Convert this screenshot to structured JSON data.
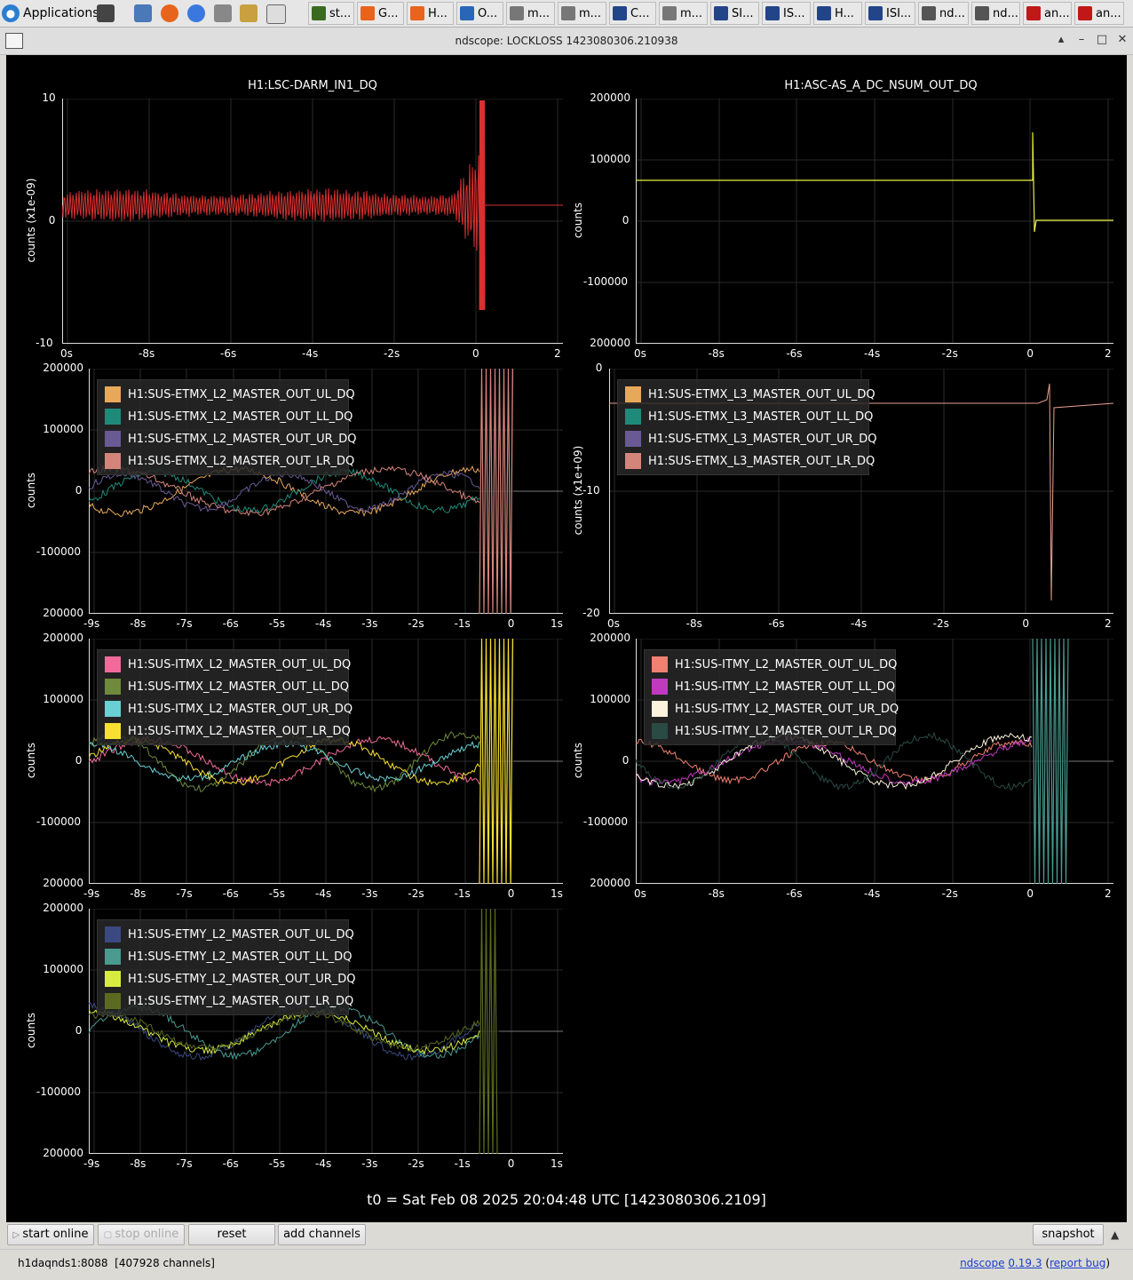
{
  "taskbar": {
    "apps_label": "Applications",
    "buttons": [
      {
        "label": "st...",
        "icon_color": "#3a6a20"
      },
      {
        "label": "G...",
        "icon_color": "#e8631c"
      },
      {
        "label": "H...",
        "icon_color": "#e8631c"
      },
      {
        "label": "O...",
        "icon_color": "#2a66b8"
      },
      {
        "label": "m...",
        "icon_color": "#777777"
      },
      {
        "label": "m...",
        "icon_color": "#777777"
      },
      {
        "label": "C...",
        "icon_color": "#224488"
      },
      {
        "label": "m...",
        "icon_color": "#777777"
      },
      {
        "label": "SI...",
        "icon_color": "#224488"
      },
      {
        "label": "IS...",
        "icon_color": "#224488"
      },
      {
        "label": "H...",
        "icon_color": "#224488"
      },
      {
        "label": "ISI...",
        "icon_color": "#224488"
      },
      {
        "label": "nd...",
        "icon_color": "#555555"
      },
      {
        "label": "nd...",
        "icon_color": "#555555"
      },
      {
        "label": "an...",
        "icon_color": "#c01818"
      },
      {
        "label": "an...",
        "icon_color": "#c01818"
      }
    ]
  },
  "window": {
    "title": "ndscope: LOCKLOSS 1423080306.210938"
  },
  "plots": {
    "darm": {
      "title": "H1:LSC-DARM_IN1_DQ",
      "ylabel": "counts (x1e-09)",
      "yticks": [
        "10",
        "0",
        "-10"
      ],
      "xticks": [
        "0s",
        "-8s",
        "-6s",
        "-4s",
        "-2s",
        "0",
        "2"
      ]
    },
    "asc": {
      "title": "H1:ASC-AS_A_DC_NSUM_OUT_DQ",
      "ylabel": "counts",
      "yticks": [
        "200000",
        "100000",
        "0",
        "-100000",
        "200000"
      ],
      "xticks": [
        "0s",
        "-8s",
        "-6s",
        "-4s",
        "-2s",
        "0",
        "2"
      ]
    },
    "etmx_l2": {
      "ylabel": "counts",
      "yticks": [
        "200000",
        "100000",
        "0",
        "-100000",
        "200000"
      ],
      "xticks": [
        "-9s",
        "-8s",
        "-7s",
        "-6s",
        "-5s",
        "-4s",
        "-3s",
        "-2s",
        "-1s",
        "0",
        "1s"
      ],
      "legend": [
        {
          "name": "H1:SUS-ETMX_L2_MASTER_OUT_UL_DQ",
          "color": "#e8a85a"
        },
        {
          "name": "H1:SUS-ETMX_L2_MASTER_OUT_LL_DQ",
          "color": "#1f8a7a"
        },
        {
          "name": "H1:SUS-ETMX_L2_MASTER_OUT_UR_DQ",
          "color": "#6a5a94"
        },
        {
          "name": "H1:SUS-ETMX_L2_MASTER_OUT_LR_DQ",
          "color": "#d4857a"
        }
      ]
    },
    "etmx_l3": {
      "ylabel": "counts (x1e+09)",
      "yticks": [
        "0",
        "-10",
        "-20"
      ],
      "xticks": [
        "0s",
        "-8s",
        "-6s",
        "-4s",
        "-2s",
        "0",
        "2"
      ],
      "legend": [
        {
          "name": "H1:SUS-ETMX_L3_MASTER_OUT_UL_DQ",
          "color": "#e8a85a"
        },
        {
          "name": "H1:SUS-ETMX_L3_MASTER_OUT_LL_DQ",
          "color": "#1f8a7a"
        },
        {
          "name": "H1:SUS-ETMX_L3_MASTER_OUT_UR_DQ",
          "color": "#6a5a94"
        },
        {
          "name": "H1:SUS-ETMX_L3_MASTER_OUT_LR_DQ",
          "color": "#d4857a"
        }
      ]
    },
    "itmx_l2": {
      "ylabel": "counts",
      "yticks": [
        "200000",
        "100000",
        "0",
        "-100000",
        "200000"
      ],
      "xticks": [
        "-9s",
        "-8s",
        "-7s",
        "-6s",
        "-5s",
        "-4s",
        "-3s",
        "-2s",
        "-1s",
        "0",
        "1s"
      ],
      "legend": [
        {
          "name": "H1:SUS-ITMX_L2_MASTER_OUT_UL_DQ",
          "color": "#f06a9a"
        },
        {
          "name": "H1:SUS-ITMX_L2_MASTER_OUT_LL_DQ",
          "color": "#6e8a3a"
        },
        {
          "name": "H1:SUS-ITMX_L2_MASTER_OUT_UR_DQ",
          "color": "#6ad0d4"
        },
        {
          "name": "H1:SUS-ITMX_L2_MASTER_OUT_LR_DQ",
          "color": "#f8e030"
        }
      ]
    },
    "itmy_l2": {
      "ylabel": "counts",
      "yticks": [
        "200000",
        "100000",
        "0",
        "-100000",
        "200000"
      ],
      "xticks": [
        "0s",
        "-8s",
        "-6s",
        "-4s",
        "-2s",
        "0",
        "2"
      ],
      "legend": [
        {
          "name": "H1:SUS-ITMY_L2_MASTER_OUT_UL_DQ",
          "color": "#f08070"
        },
        {
          "name": "H1:SUS-ITMY_L2_MASTER_OUT_LL_DQ",
          "color": "#c03ac0"
        },
        {
          "name": "H1:SUS-ITMY_L2_MASTER_OUT_UR_DQ",
          "color": "#fdf2dc"
        },
        {
          "name": "H1:SUS-ITMY_L2_MASTER_OUT_LR_DQ",
          "color": "#2a4a44"
        }
      ]
    },
    "etmy_l2": {
      "ylabel": "counts",
      "yticks": [
        "200000",
        "100000",
        "0",
        "-100000",
        "200000"
      ],
      "xticks": [
        "-9s",
        "-8s",
        "-7s",
        "-6s",
        "-5s",
        "-4s",
        "-3s",
        "-2s",
        "-1s",
        "0",
        "1s"
      ],
      "legend": [
        {
          "name": "H1:SUS-ETMY_L2_MASTER_OUT_UL_DQ",
          "color": "#3a4a80"
        },
        {
          "name": "H1:SUS-ETMY_L2_MASTER_OUT_LL_DQ",
          "color": "#4a9a90"
        },
        {
          "name": "H1:SUS-ETMY_L2_MASTER_OUT_UR_DQ",
          "color": "#d8ec40"
        },
        {
          "name": "H1:SUS-ETMY_L2_MASTER_OUT_LR_DQ",
          "color": "#5a6a20"
        }
      ]
    }
  },
  "t0_label": "t0 = Sat Feb 08 2025 20:04:48 UTC [1423080306.2109]",
  "toolbar": {
    "start_online": "start online",
    "stop_online": "stop online",
    "reset": "reset",
    "add_channels": "add channels",
    "snapshot": "snapshot"
  },
  "status": {
    "server": "h1daqnds1:8088",
    "channels": "[407928 channels]",
    "app_name": "ndscope",
    "version": "0.19.3",
    "report_bug": "report bug"
  }
}
